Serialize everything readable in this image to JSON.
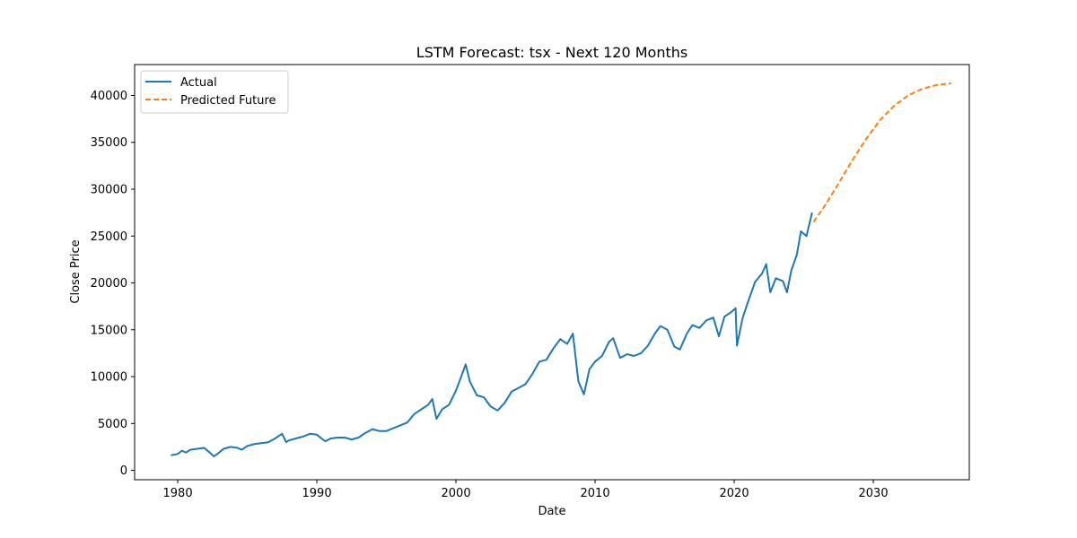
{
  "chart_data": {
    "type": "line",
    "title": "LSTM Forecast: tsx - Next 120 Months",
    "xlabel": "Date",
    "ylabel": "Close Price",
    "xlim": [
      1976.9,
      2036.9
    ],
    "ylim": [
      -1000,
      43300
    ],
    "x_ticks": [
      1980,
      1990,
      2000,
      2010,
      2020,
      2030
    ],
    "y_ticks": [
      0,
      5000,
      10000,
      15000,
      20000,
      25000,
      30000,
      35000,
      40000
    ],
    "grid": false,
    "legend": "top-left",
    "series": [
      {
        "name": "Actual",
        "color": "#1f77b4",
        "style": "solid",
        "points": [
          [
            1979.5,
            1600
          ],
          [
            1980.0,
            1750
          ],
          [
            1980.3,
            2100
          ],
          [
            1980.6,
            1900
          ],
          [
            1980.9,
            2200
          ],
          [
            1981.4,
            2300
          ],
          [
            1981.9,
            2400
          ],
          [
            1982.3,
            1900
          ],
          [
            1982.6,
            1500
          ],
          [
            1982.9,
            1800
          ],
          [
            1983.3,
            2300
          ],
          [
            1983.8,
            2500
          ],
          [
            1984.3,
            2400
          ],
          [
            1984.6,
            2200
          ],
          [
            1985.0,
            2600
          ],
          [
            1985.5,
            2800
          ],
          [
            1986.0,
            2900
          ],
          [
            1986.5,
            3000
          ],
          [
            1987.0,
            3400
          ],
          [
            1987.5,
            3900
          ],
          [
            1987.8,
            3000
          ],
          [
            1988.0,
            3200
          ],
          [
            1988.5,
            3400
          ],
          [
            1989.0,
            3600
          ],
          [
            1989.5,
            3900
          ],
          [
            1990.0,
            3800
          ],
          [
            1990.6,
            3100
          ],
          [
            1991.0,
            3400
          ],
          [
            1991.5,
            3500
          ],
          [
            1992.0,
            3500
          ],
          [
            1992.5,
            3300
          ],
          [
            1993.0,
            3500
          ],
          [
            1993.5,
            4000
          ],
          [
            1994.0,
            4400
          ],
          [
            1994.5,
            4200
          ],
          [
            1995.0,
            4200
          ],
          [
            1995.5,
            4500
          ],
          [
            1996.0,
            4800
          ],
          [
            1996.5,
            5100
          ],
          [
            1997.0,
            6000
          ],
          [
            1997.5,
            6500
          ],
          [
            1998.0,
            7000
          ],
          [
            1998.3,
            7600
          ],
          [
            1998.6,
            5500
          ],
          [
            1999.0,
            6500
          ],
          [
            1999.5,
            7000
          ],
          [
            2000.0,
            8500
          ],
          [
            2000.3,
            9700
          ],
          [
            2000.7,
            11300
          ],
          [
            2001.0,
            9500
          ],
          [
            2001.5,
            8000
          ],
          [
            2002.0,
            7800
          ],
          [
            2002.5,
            6800
          ],
          [
            2003.0,
            6400
          ],
          [
            2003.5,
            7200
          ],
          [
            2004.0,
            8400
          ],
          [
            2004.5,
            8800
          ],
          [
            2005.0,
            9200
          ],
          [
            2005.5,
            10300
          ],
          [
            2006.0,
            11600
          ],
          [
            2006.5,
            11800
          ],
          [
            2007.0,
            13000
          ],
          [
            2007.5,
            14000
          ],
          [
            2008.0,
            13500
          ],
          [
            2008.4,
            14600
          ],
          [
            2008.8,
            9500
          ],
          [
            2009.2,
            8100
          ],
          [
            2009.6,
            10800
          ],
          [
            2010.0,
            11600
          ],
          [
            2010.5,
            12200
          ],
          [
            2011.0,
            13700
          ],
          [
            2011.3,
            14100
          ],
          [
            2011.8,
            12000
          ],
          [
            2012.3,
            12400
          ],
          [
            2012.8,
            12200
          ],
          [
            2013.3,
            12500
          ],
          [
            2013.8,
            13300
          ],
          [
            2014.3,
            14600
          ],
          [
            2014.7,
            15400
          ],
          [
            2015.2,
            15000
          ],
          [
            2015.7,
            13200
          ],
          [
            2016.1,
            12900
          ],
          [
            2016.6,
            14600
          ],
          [
            2017.0,
            15500
          ],
          [
            2017.5,
            15200
          ],
          [
            2018.0,
            16000
          ],
          [
            2018.5,
            16300
          ],
          [
            2018.9,
            14300
          ],
          [
            2019.3,
            16400
          ],
          [
            2019.8,
            16900
          ],
          [
            2020.1,
            17300
          ],
          [
            2020.2,
            13300
          ],
          [
            2020.6,
            16200
          ],
          [
            2021.0,
            18000
          ],
          [
            2021.5,
            20100
          ],
          [
            2022.0,
            21000
          ],
          [
            2022.3,
            22000
          ],
          [
            2022.6,
            19000
          ],
          [
            2023.0,
            20500
          ],
          [
            2023.5,
            20200
          ],
          [
            2023.8,
            19000
          ],
          [
            2024.1,
            21300
          ],
          [
            2024.5,
            23000
          ],
          [
            2024.8,
            25500
          ],
          [
            2025.2,
            25000
          ],
          [
            2025.6,
            27500
          ]
        ]
      },
      {
        "name": "Predicted Future",
        "color": "#ff7f0e",
        "style": "dashed",
        "points": [
          [
            2025.7,
            26500
          ],
          [
            2026.5,
            28200
          ],
          [
            2027.5,
            30600
          ],
          [
            2028.5,
            33100
          ],
          [
            2029.5,
            35400
          ],
          [
            2030.5,
            37400
          ],
          [
            2031.5,
            38900
          ],
          [
            2032.5,
            40000
          ],
          [
            2033.5,
            40700
          ],
          [
            2034.5,
            41100
          ],
          [
            2035.6,
            41300
          ]
        ]
      }
    ]
  }
}
